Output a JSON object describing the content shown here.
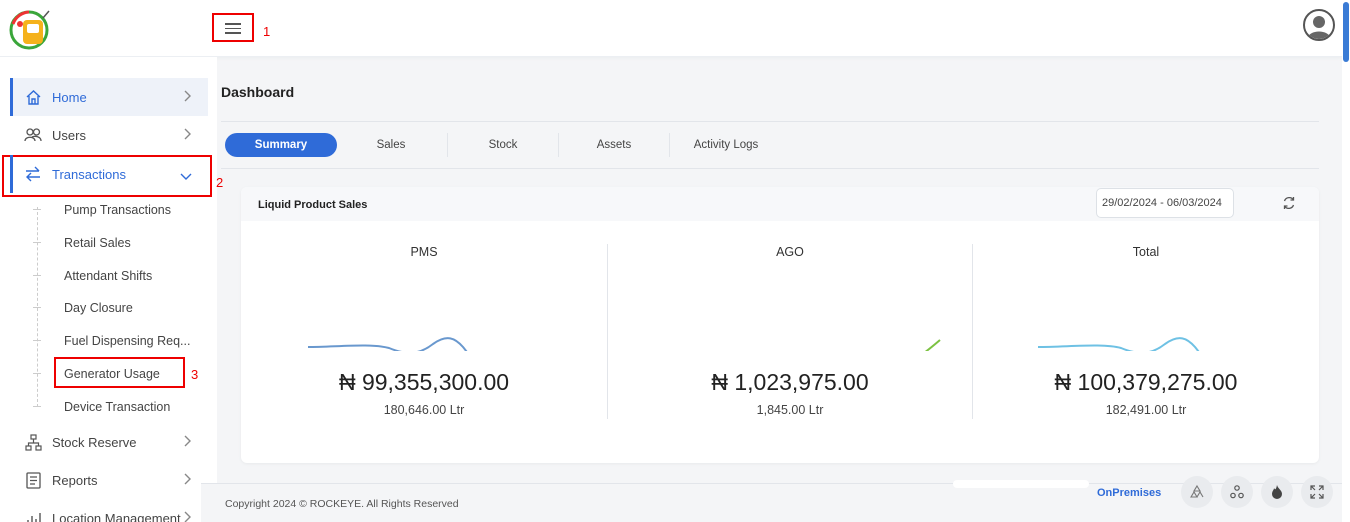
{
  "header": {
    "annotation_1": "1"
  },
  "sidebar": {
    "items": [
      {
        "label": "Home"
      },
      {
        "label": "Users"
      },
      {
        "label": "Transactions"
      },
      {
        "label": "Stock Reserve"
      },
      {
        "label": "Reports"
      },
      {
        "label": "Location Management"
      }
    ],
    "sub_items": [
      {
        "label": "Pump Transactions"
      },
      {
        "label": "Retail Sales"
      },
      {
        "label": "Attendant Shifts"
      },
      {
        "label": "Day Closure"
      },
      {
        "label": "Fuel Dispensing Req..."
      },
      {
        "label": "Generator Usage"
      },
      {
        "label": "Device Transaction"
      }
    ],
    "annotation_2": "2",
    "annotation_3": "3"
  },
  "main": {
    "page_title": "Dashboard",
    "tabs": [
      {
        "label": "Summary",
        "active": true
      },
      {
        "label": "Sales"
      },
      {
        "label": "Stock"
      },
      {
        "label": "Assets"
      },
      {
        "label": "Activity Logs"
      }
    ],
    "card": {
      "title": "Liquid Product Sales",
      "date_range": "29/02/2024 - 06/03/2024",
      "columns": [
        {
          "label": "PMS",
          "amount": "₦ 99,355,300.00",
          "quantity": "180,646.00 Ltr",
          "color": "#4f86c6"
        },
        {
          "label": "AGO",
          "amount": "₦ 1,023,975.00",
          "quantity": "1,845.00 Ltr",
          "color": "#7cc242"
        },
        {
          "label": "Total",
          "amount": "₦ 100,379,275.00",
          "quantity": "182,491.00 Ltr",
          "color": "#6ec1e4"
        }
      ]
    }
  },
  "footer": {
    "copyright": "Copyright 2024 © ROCKEYE. All Rights Reserved",
    "mode": "OnPremises",
    "buttons": [
      "recycle-icon",
      "network-icon",
      "fire-icon",
      "fullscreen-icon"
    ]
  },
  "colors": {
    "accent": "#2f6bd8",
    "annotation": "#e00000"
  }
}
